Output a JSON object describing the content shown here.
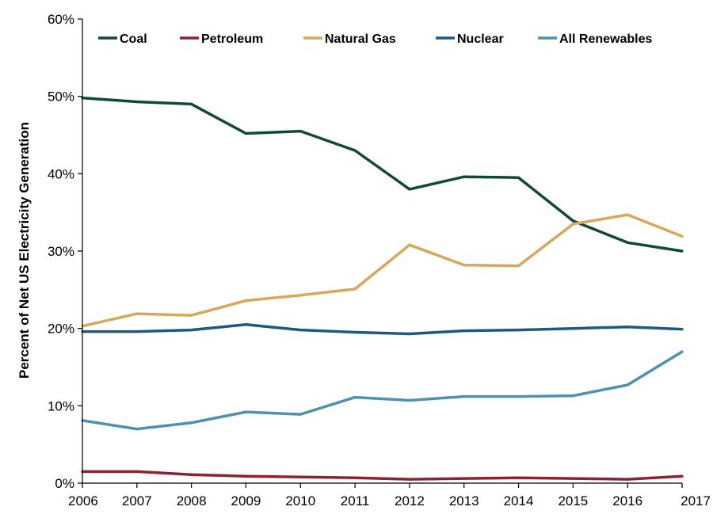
{
  "chart_data": {
    "type": "line",
    "title": "",
    "xlabel": "",
    "ylabel": "Percent of Net US Electricity Generation",
    "x": [
      2006,
      2007,
      2008,
      2009,
      2010,
      2011,
      2012,
      2013,
      2014,
      2015,
      2016,
      2017
    ],
    "x_tick_labels": [
      "2006",
      "2007",
      "2008",
      "2009",
      "2010",
      "2011",
      "2012",
      "2013",
      "2014",
      "2015",
      "2016",
      "2017"
    ],
    "ylim": [
      0,
      60
    ],
    "y_ticks": [
      0,
      10,
      20,
      30,
      40,
      50,
      60
    ],
    "y_tick_labels": [
      "0%",
      "10%",
      "20%",
      "30%",
      "40%",
      "50%",
      "60%"
    ],
    "grid": false,
    "legend_position": "top",
    "series": [
      {
        "name": "Coal",
        "color": "#0f4a36",
        "values": [
          49.8,
          49.3,
          49.0,
          45.2,
          45.5,
          43.0,
          38.0,
          39.6,
          39.5,
          33.9,
          31.1,
          30.0
        ]
      },
      {
        "name": "Petroleum",
        "color": "#8b2332",
        "values": [
          1.5,
          1.5,
          1.1,
          0.9,
          0.8,
          0.7,
          0.5,
          0.6,
          0.7,
          0.6,
          0.5,
          0.9
        ]
      },
      {
        "name": "Natural Gas",
        "color": "#d6a95a",
        "values": [
          20.3,
          21.9,
          21.7,
          23.6,
          24.3,
          25.1,
          30.8,
          28.2,
          28.1,
          33.5,
          34.7,
          31.9
        ]
      },
      {
        "name": "Nuclear",
        "color": "#1d5a7d",
        "values": [
          19.6,
          19.6,
          19.8,
          20.5,
          19.8,
          19.5,
          19.3,
          19.7,
          19.8,
          20.0,
          20.2,
          19.9
        ]
      },
      {
        "name": "All Renewables",
        "color": "#4e92ad",
        "values": [
          8.1,
          7.0,
          7.8,
          9.2,
          8.9,
          11.1,
          10.7,
          11.2,
          11.2,
          11.3,
          12.7,
          17.0
        ]
      }
    ]
  }
}
